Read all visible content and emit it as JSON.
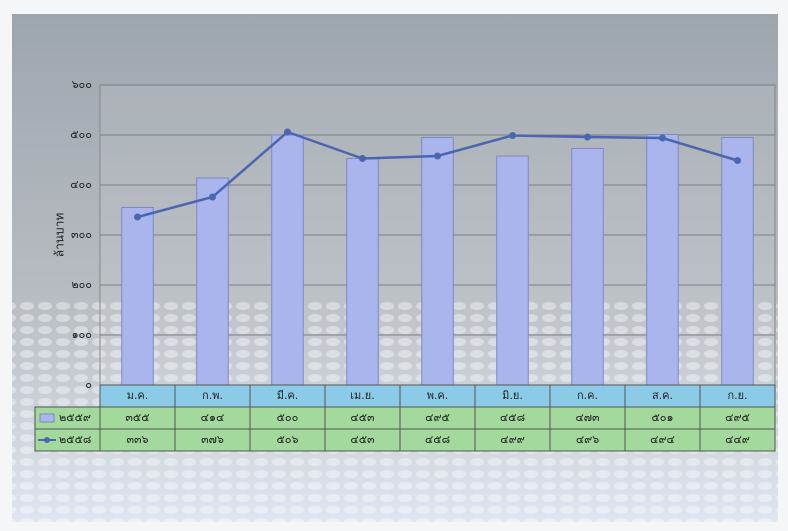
{
  "chart_data": {
    "type": "bar-line",
    "y_label": "ล้านบาท",
    "categories": [
      "ม.ค.",
      "ก.พ.",
      "มี.ค.",
      "เม.ย.",
      "พ.ค.",
      "มิ.ย.",
      "ก.ค.",
      "ส.ค.",
      "ก.ย."
    ],
    "series": [
      {
        "name": "๒๕๕๙",
        "type": "bar",
        "color": "#a9b5ec",
        "values": [
          355,
          414,
          500,
          453,
          495,
          458,
          473,
          501,
          495
        ],
        "value_labels": [
          "๓๕๕",
          "๔๑๔",
          "๕๐๐",
          "๔๕๓",
          "๔๙๕",
          "๔๕๘",
          "๔๗๓",
          "๕๐๑",
          "๔๙๕"
        ]
      },
      {
        "name": "๒๕๕๘",
        "type": "line",
        "color": "#4a66b0",
        "values": [
          336,
          376,
          506,
          453,
          458,
          499,
          496,
          494,
          449
        ],
        "value_labels": [
          "๓๓๖",
          "๓๗๖",
          "๕๐๖",
          "๔๕๓",
          "๔๕๘",
          "๔๙๙",
          "๔๙๖",
          "๔๙๔",
          "๔๔๙"
        ]
      }
    ],
    "ylim": [
      0,
      600
    ],
    "yticks": [
      {
        "value": 0,
        "label": "๐"
      },
      {
        "value": 100,
        "label": "๑๐๐"
      },
      {
        "value": 200,
        "label": "๒๐๐"
      },
      {
        "value": 300,
        "label": "๓๐๐"
      },
      {
        "value": 400,
        "label": "๔๐๐"
      },
      {
        "value": 500,
        "label": "๕๐๐"
      },
      {
        "value": 600,
        "label": "๖๐๐"
      }
    ],
    "grid": true
  }
}
